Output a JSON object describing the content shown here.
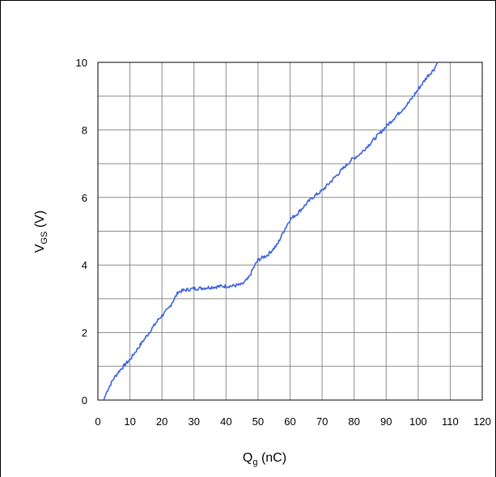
{
  "chart_data": {
    "type": "line",
    "title": "",
    "xlabel": {
      "main": "Q",
      "sub": "g",
      "unit": " (nC)"
    },
    "ylabel": {
      "main": "V",
      "sub": "GS",
      "unit": " (V)"
    },
    "xlim": [
      0,
      120
    ],
    "ylim": [
      0,
      10
    ],
    "xticks": [
      0,
      10,
      20,
      30,
      40,
      50,
      60,
      70,
      80,
      90,
      100,
      110,
      120
    ],
    "yticks": [
      0,
      2,
      4,
      6,
      8,
      10
    ],
    "grid": true,
    "series_color": "#3b63e0",
    "series": [
      {
        "x": [
          1.8,
          3,
          5,
          7,
          10,
          13,
          16,
          19,
          22,
          24.5,
          25,
          27,
          30,
          33,
          36,
          39,
          42,
          45,
          47,
          48.5,
          50,
          53,
          56,
          58,
          60,
          62,
          64,
          67,
          70,
          73,
          76,
          79,
          82,
          85,
          88,
          91,
          94,
          97,
          100,
          103,
          105,
          106
        ],
        "y": [
          0,
          0.3,
          0.65,
          0.9,
          1.2,
          1.6,
          2.0,
          2.4,
          2.7,
          3.1,
          3.2,
          3.25,
          3.3,
          3.32,
          3.35,
          3.37,
          3.38,
          3.42,
          3.6,
          3.9,
          4.15,
          4.3,
          4.6,
          5.0,
          5.35,
          5.5,
          5.7,
          6.0,
          6.2,
          6.5,
          6.8,
          7.1,
          7.3,
          7.6,
          7.9,
          8.2,
          8.5,
          8.8,
          9.2,
          9.6,
          9.8,
          10.0
        ]
      }
    ]
  }
}
